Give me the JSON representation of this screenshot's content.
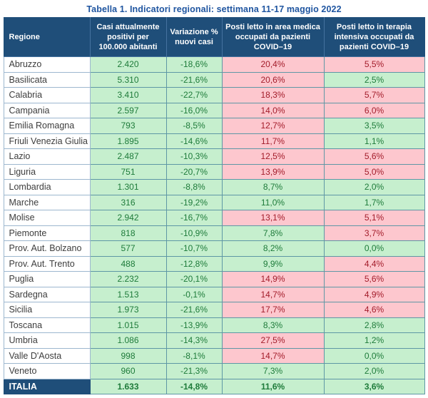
{
  "title": "Tabella 1. Indicatori regionali: settimana 11-17 maggio 2022",
  "chart_data": {
    "type": "table",
    "title": "Tabella 1. Indicatori regionali: settimana 11-17 maggio 2022",
    "columns": [
      {
        "id": "regione",
        "label": "Regione"
      },
      {
        "id": "casi",
        "label": "Casi attualmente positivi per 100.000 abitanti"
      },
      {
        "id": "variazione",
        "label": "Variazione % nuovi casi"
      },
      {
        "id": "area-medica",
        "label": "Posti letto in area medica occupati da pazienti COVID–19"
      },
      {
        "id": "terapia-intensiva",
        "label": "Posti letto in terapia intensiva occupati da pazienti COVID–19"
      }
    ],
    "rows": [
      {
        "regione": "Abruzzo",
        "values": [
          {
            "v": "2.420",
            "s": "good"
          },
          {
            "v": "-18,6%",
            "s": "good"
          },
          {
            "v": "20,4%",
            "s": "bad"
          },
          {
            "v": "5,5%",
            "s": "bad"
          }
        ]
      },
      {
        "regione": "Basilicata",
        "values": [
          {
            "v": "5.310",
            "s": "good"
          },
          {
            "v": "-21,6%",
            "s": "good"
          },
          {
            "v": "20,6%",
            "s": "bad"
          },
          {
            "v": "2,5%",
            "s": "good"
          }
        ]
      },
      {
        "regione": "Calabria",
        "values": [
          {
            "v": "3.410",
            "s": "good"
          },
          {
            "v": "-22,7%",
            "s": "good"
          },
          {
            "v": "18,3%",
            "s": "bad"
          },
          {
            "v": "5,7%",
            "s": "bad"
          }
        ]
      },
      {
        "regione": "Campania",
        "values": [
          {
            "v": "2.597",
            "s": "good"
          },
          {
            "v": "-16,0%",
            "s": "good"
          },
          {
            "v": "14,0%",
            "s": "bad"
          },
          {
            "v": "6,0%",
            "s": "bad"
          }
        ]
      },
      {
        "regione": "Emilia Romagna",
        "values": [
          {
            "v": "793",
            "s": "good"
          },
          {
            "v": "-8,5%",
            "s": "good"
          },
          {
            "v": "12,7%",
            "s": "bad"
          },
          {
            "v": "3,5%",
            "s": "good"
          }
        ]
      },
      {
        "regione": "Friuli Venezia Giulia",
        "values": [
          {
            "v": "1.895",
            "s": "good"
          },
          {
            "v": "-14,6%",
            "s": "good"
          },
          {
            "v": "11,7%",
            "s": "bad"
          },
          {
            "v": "1,1%",
            "s": "good"
          }
        ]
      },
      {
        "regione": "Lazio",
        "values": [
          {
            "v": "2.487",
            "s": "good"
          },
          {
            "v": "-10,3%",
            "s": "good"
          },
          {
            "v": "12,5%",
            "s": "bad"
          },
          {
            "v": "5,6%",
            "s": "bad"
          }
        ]
      },
      {
        "regione": "Liguria",
        "values": [
          {
            "v": "751",
            "s": "good"
          },
          {
            "v": "-20,7%",
            "s": "good"
          },
          {
            "v": "13,9%",
            "s": "bad"
          },
          {
            "v": "5,0%",
            "s": "bad"
          }
        ]
      },
      {
        "regione": "Lombardia",
        "values": [
          {
            "v": "1.301",
            "s": "good"
          },
          {
            "v": "-8,8%",
            "s": "good"
          },
          {
            "v": "8,7%",
            "s": "good"
          },
          {
            "v": "2,0%",
            "s": "good"
          }
        ]
      },
      {
        "regione": "Marche",
        "values": [
          {
            "v": "316",
            "s": "good"
          },
          {
            "v": "-19,2%",
            "s": "good"
          },
          {
            "v": "11,0%",
            "s": "good"
          },
          {
            "v": "1,7%",
            "s": "good"
          }
        ]
      },
      {
        "regione": "Molise",
        "values": [
          {
            "v": "2.942",
            "s": "good"
          },
          {
            "v": "-16,7%",
            "s": "good"
          },
          {
            "v": "13,1%",
            "s": "bad"
          },
          {
            "v": "5,1%",
            "s": "bad"
          }
        ]
      },
      {
        "regione": "Piemonte",
        "values": [
          {
            "v": "818",
            "s": "good"
          },
          {
            "v": "-10,9%",
            "s": "good"
          },
          {
            "v": "7,8%",
            "s": "good"
          },
          {
            "v": "3,7%",
            "s": "bad"
          }
        ]
      },
      {
        "regione": "Prov. Aut. Bolzano",
        "values": [
          {
            "v": "577",
            "s": "good"
          },
          {
            "v": "-10,7%",
            "s": "good"
          },
          {
            "v": "8,2%",
            "s": "good"
          },
          {
            "v": "0,0%",
            "s": "good"
          }
        ]
      },
      {
        "regione": "Prov. Aut. Trento",
        "values": [
          {
            "v": "488",
            "s": "good"
          },
          {
            "v": "-12,8%",
            "s": "good"
          },
          {
            "v": "9,9%",
            "s": "good"
          },
          {
            "v": "4,4%",
            "s": "bad"
          }
        ]
      },
      {
        "regione": "Puglia",
        "values": [
          {
            "v": "2.232",
            "s": "good"
          },
          {
            "v": "-20,1%",
            "s": "good"
          },
          {
            "v": "14,9%",
            "s": "bad"
          },
          {
            "v": "5,6%",
            "s": "bad"
          }
        ]
      },
      {
        "regione": "Sardegna",
        "values": [
          {
            "v": "1.513",
            "s": "good"
          },
          {
            "v": "-0,1%",
            "s": "good"
          },
          {
            "v": "14,7%",
            "s": "bad"
          },
          {
            "v": "4,9%",
            "s": "bad"
          }
        ]
      },
      {
        "regione": "Sicilia",
        "values": [
          {
            "v": "1.973",
            "s": "good"
          },
          {
            "v": "-21,6%",
            "s": "good"
          },
          {
            "v": "17,7%",
            "s": "bad"
          },
          {
            "v": "4,6%",
            "s": "bad"
          }
        ]
      },
      {
        "regione": "Toscana",
        "values": [
          {
            "v": "1.015",
            "s": "good"
          },
          {
            "v": "-13,9%",
            "s": "good"
          },
          {
            "v": "8,3%",
            "s": "good"
          },
          {
            "v": "2,8%",
            "s": "good"
          }
        ]
      },
      {
        "regione": "Umbria",
        "values": [
          {
            "v": "1.086",
            "s": "good"
          },
          {
            "v": "-14,3%",
            "s": "good"
          },
          {
            "v": "27,5%",
            "s": "bad"
          },
          {
            "v": "1,2%",
            "s": "good"
          }
        ]
      },
      {
        "regione": "Valle D'Aosta",
        "values": [
          {
            "v": "998",
            "s": "good"
          },
          {
            "v": "-8,1%",
            "s": "good"
          },
          {
            "v": "14,7%",
            "s": "bad"
          },
          {
            "v": "0,0%",
            "s": "good"
          }
        ]
      },
      {
        "regione": "Veneto",
        "values": [
          {
            "v": "960",
            "s": "good"
          },
          {
            "v": "-21,3%",
            "s": "good"
          },
          {
            "v": "7,3%",
            "s": "good"
          },
          {
            "v": "2,0%",
            "s": "good"
          }
        ]
      }
    ],
    "total": {
      "regione": "ITALIA",
      "values": [
        {
          "v": "1.633",
          "s": "good"
        },
        {
          "v": "-14,8%",
          "s": "good"
        },
        {
          "v": "11,6%",
          "s": "good"
        },
        {
          "v": "3,6%",
          "s": "good"
        }
      ]
    },
    "status_colors": {
      "good_bg": "#c6efce",
      "good_text": "#1e7b3a",
      "bad_bg": "#fdc7ce",
      "bad_text": "#a31c2a"
    },
    "header_bg": "#1f4e79",
    "title_color": "#1f55a0"
  }
}
